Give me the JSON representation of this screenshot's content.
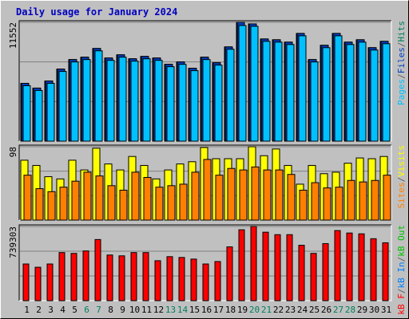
{
  "chart_data": {
    "type": "bar",
    "title": "Daily usage for January 2024",
    "title_color": "#0000c0",
    "categories": [
      "1",
      "2",
      "3",
      "4",
      "5",
      "6",
      "7",
      "8",
      "9",
      "10",
      "11",
      "12",
      "13",
      "14",
      "15",
      "16",
      "17",
      "18",
      "19",
      "20",
      "21",
      "22",
      "23",
      "24",
      "25",
      "26",
      "27",
      "28",
      "29",
      "30",
      "31"
    ],
    "category_colors": [
      "#000000",
      "#000000",
      "#000000",
      "#000000",
      "#000000",
      "#00805c",
      "#00805c",
      "#000000",
      "#000000",
      "#000000",
      "#000000",
      "#000000",
      "#00805c",
      "#00805c",
      "#000000",
      "#000000",
      "#000000",
      "#000000",
      "#000000",
      "#00805c",
      "#00805c",
      "#000000",
      "#000000",
      "#000000",
      "#000000",
      "#000000",
      "#00805c",
      "#00805c",
      "#000000",
      "#000000",
      "#000000"
    ],
    "legend_separator": "/",
    "separator_color": "#606060",
    "grid_divisions": 3,
    "panels": [
      {
        "ylim": [
          0,
          11552
        ],
        "yticks": [
          11552
        ],
        "series": [
          {
            "name": "Hits",
            "color": "#00805c",
            "values": [
              5622,
              5160,
              5853,
              7008,
              7932,
              8163,
              9011,
              8086,
              8394,
              8009,
              8240,
              8086,
              7470,
              7701,
              7085,
              8163,
              7624,
              9165,
              11552,
              11398,
              9935,
              9858,
              9627,
              10474,
              7932,
              9319,
              10474,
              9627,
              9858,
              9088,
              9704
            ]
          },
          {
            "name": "Files",
            "color": "#0040c0",
            "values": [
              5622,
              5160,
              5853,
              7008,
              7932,
              8163,
              9011,
              8086,
              8394,
              8009,
              8240,
              8086,
              7470,
              7701,
              7085,
              8163,
              7624,
              9165,
              11552,
              11398,
              9935,
              9858,
              9627,
              10474,
              7932,
              9319,
              10474,
              9627,
              9858,
              9088,
              9704
            ]
          },
          {
            "name": "Pages",
            "color": "#00c0ff",
            "values": [
              5391,
              4929,
              5622,
              6777,
              7701,
              7932,
              8780,
              7855,
              8163,
              7778,
              8009,
              7855,
              7239,
              7470,
              6854,
              7932,
              7393,
              8934,
              11244,
              11167,
              9704,
              9627,
              9396,
              10243,
              7701,
              9088,
              10243,
              9396,
              9627,
              8857,
              9473
            ]
          }
        ],
        "legend_order": [
          "Pages",
          "Files",
          "Hits"
        ]
      },
      {
        "ylim": [
          0,
          98
        ],
        "yticks": [
          98
        ],
        "series": [
          {
            "name": "Visits",
            "color": "#ffff00",
            "values": [
              80,
              73,
              58,
              55,
              80,
              67,
              96,
              75,
              67,
              85,
              73,
              55,
              67,
              75,
              78,
              97,
              82,
              82,
              82,
              98,
              86,
              95,
              73,
              48,
              73,
              62,
              64,
              76,
              83,
              82,
              85
            ]
          },
          {
            "name": "Sites",
            "color": "#ff8000",
            "values": [
              60,
              42,
              38,
              44,
              52,
              64,
              59,
              46,
              40,
              64,
              57,
              44,
              46,
              48,
              64,
              81,
              60,
              69,
              67,
              71,
              67,
              67,
              61,
              40,
              50,
              43,
              44,
              53,
              51,
              53,
              60
            ]
          }
        ],
        "legend_order": [
          "Sites",
          "Visits"
        ]
      },
      {
        "ylim": [
          0,
          739303
        ],
        "yticks": [
          739303
        ],
        "series": [
          {
            "name": "kB F",
            "color": "#ff0000",
            "values": [
              365600,
              333100,
              365600,
              479300,
              471200,
              495600,
              609300,
              455000,
              446800,
              479300,
              479300,
              398100,
              438700,
              430600,
              414300,
              365600,
              390000,
              536200,
              706800,
              739303,
              682400,
              658000,
              658000,
              552400,
              471200,
              568700,
              698700,
              674300,
              666200,
              617400,
              576800
            ]
          }
        ],
        "extra_legend": [
          {
            "name": "kB In",
            "color": "#0080ff"
          },
          {
            "name": "kB Out",
            "color": "#00c000"
          }
        ]
      }
    ]
  }
}
